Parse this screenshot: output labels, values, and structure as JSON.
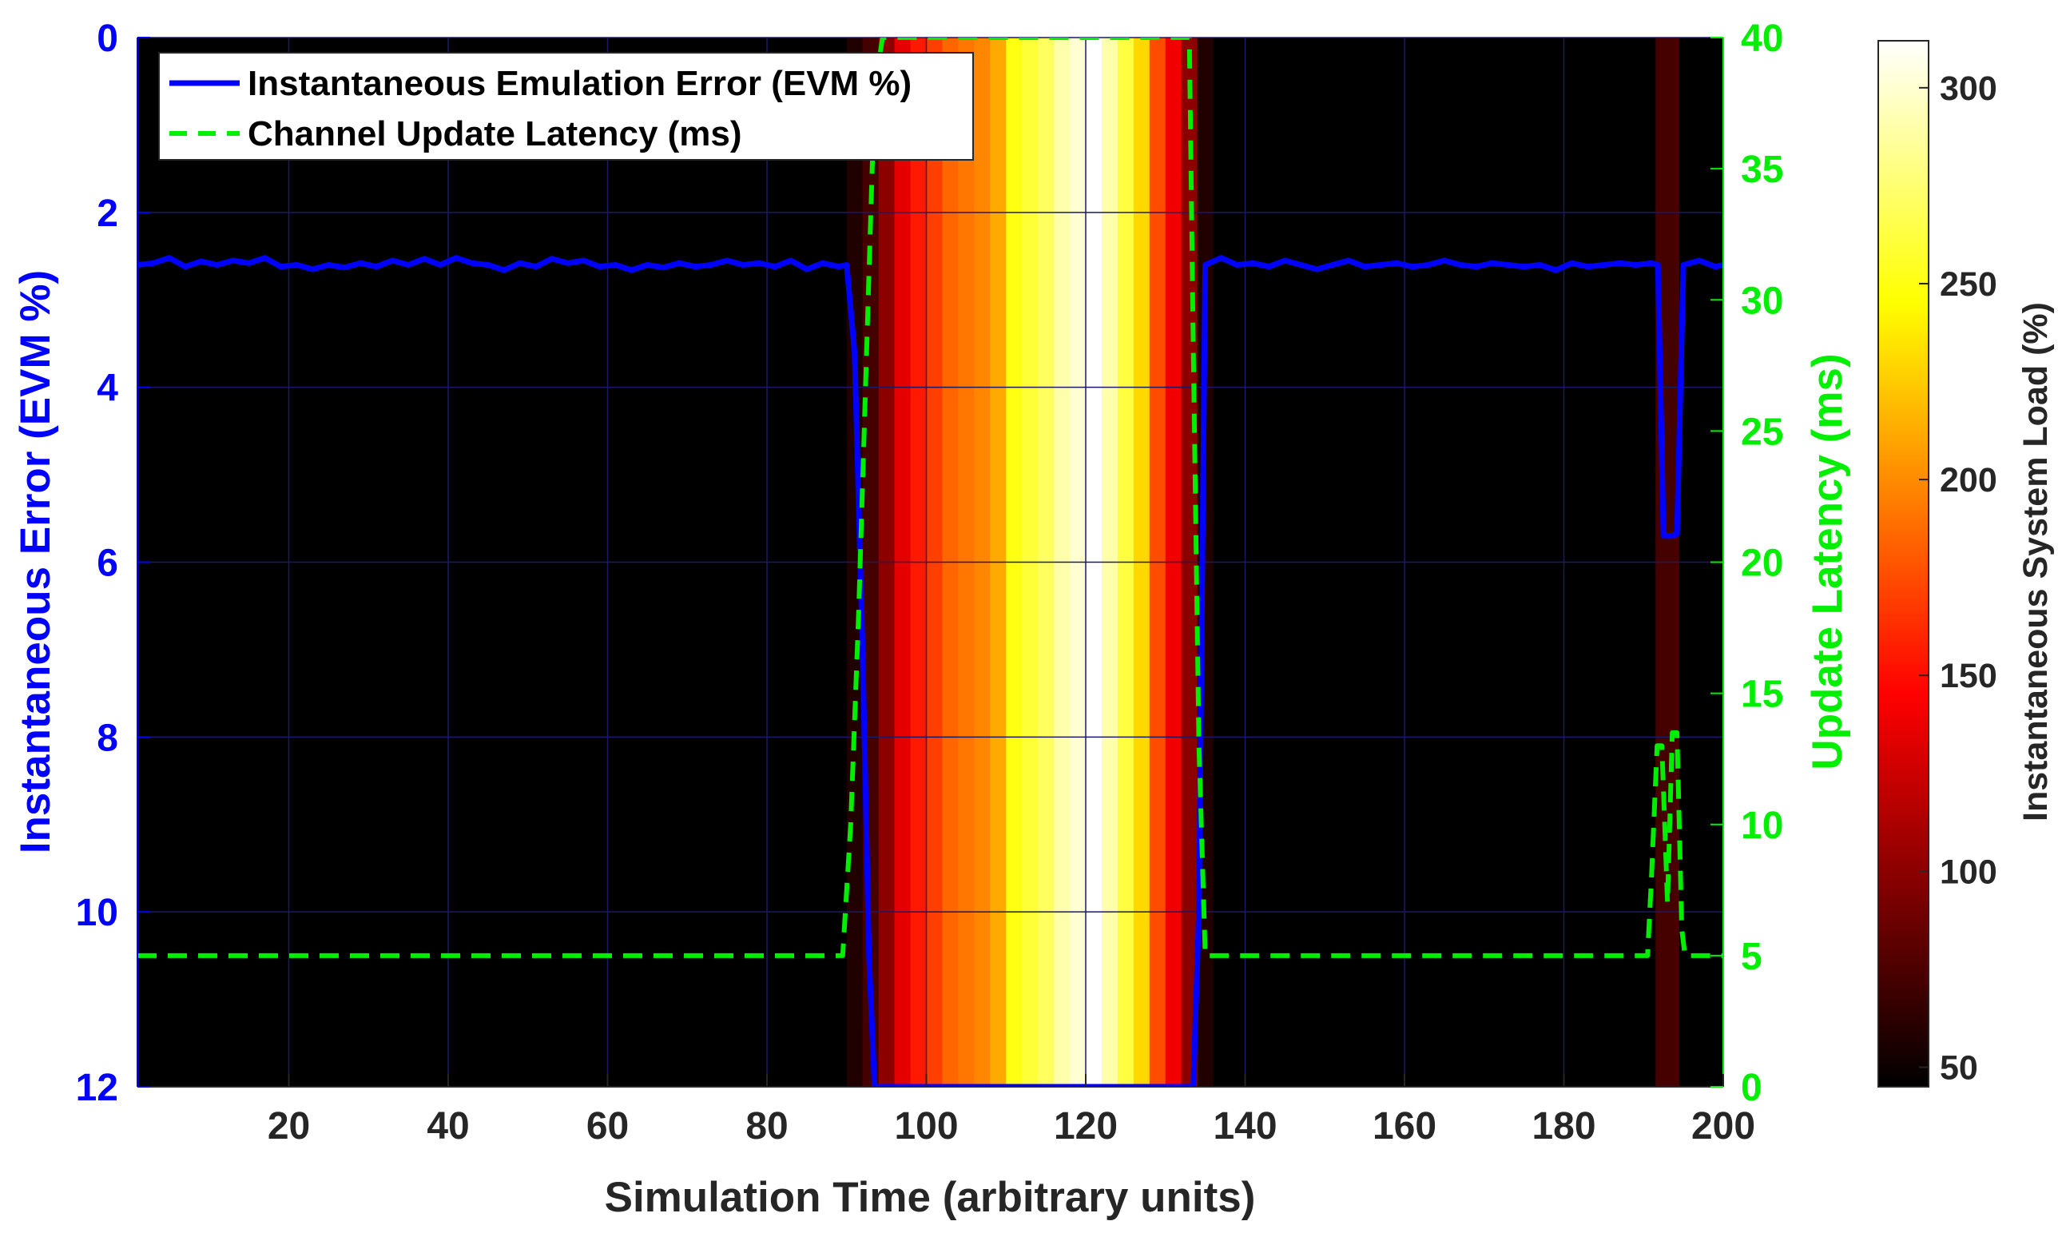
{
  "chart_data": {
    "type": "line",
    "xlabel": "Simulation Time (arbitrary units)",
    "ylabel_left": "Instantaneous Error (EVM %)",
    "ylabel_right": "Update Latency (ms)",
    "colorbar_label": "Instantaneous System Load (%)",
    "xlim": [
      1,
      200
    ],
    "ylim_left": [
      0,
      12
    ],
    "ylim_left_reversed": true,
    "ylim_right": [
      0,
      40
    ],
    "colorbar_lim": [
      45,
      312
    ],
    "x_ticks": [
      "20",
      "40",
      "60",
      "80",
      "100",
      "120",
      "140",
      "160",
      "180",
      "200"
    ],
    "y_left_ticks": [
      "0",
      "2",
      "4",
      "6",
      "8",
      "10",
      "12"
    ],
    "y_right_ticks": [
      "0",
      "5",
      "10",
      "15",
      "20",
      "25",
      "30",
      "35",
      "40"
    ],
    "colorbar_ticks": [
      "50",
      "100",
      "150",
      "200",
      "250",
      "300"
    ],
    "colormap": "hot",
    "grid": true,
    "legend_position": "top-left",
    "colors": {
      "background": "#000000",
      "error_line": "#0000ff",
      "latency_line": "#00ee00",
      "grid": "#1a1a66"
    },
    "series": [
      {
        "name": "Instantaneous Emulation Error (EVM %)",
        "axis": "left",
        "style": "solid",
        "x": [
          1,
          3,
          5,
          7,
          9,
          11,
          13,
          15,
          17,
          19,
          21,
          23,
          25,
          27,
          29,
          31,
          33,
          35,
          37,
          39,
          41,
          43,
          45,
          47,
          49,
          51,
          53,
          55,
          57,
          59,
          61,
          63,
          65,
          67,
          69,
          71,
          73,
          75,
          77,
          79,
          81,
          83,
          85,
          87,
          89,
          90,
          91,
          92,
          92.8,
          93.5,
          133.5,
          134.2,
          135,
          137,
          139,
          141,
          143,
          145,
          147,
          149,
          151,
          153,
          155,
          157,
          159,
          161,
          163,
          165,
          167,
          169,
          171,
          173,
          175,
          177,
          179,
          181,
          183,
          185,
          187,
          189,
          191,
          191.8,
          192.5,
          193.5,
          194.2,
          195,
          197,
          199,
          200
        ],
        "y": [
          2.6,
          2.58,
          2.52,
          2.62,
          2.56,
          2.6,
          2.55,
          2.58,
          2.52,
          2.62,
          2.6,
          2.65,
          2.6,
          2.63,
          2.58,
          2.62,
          2.55,
          2.6,
          2.53,
          2.6,
          2.52,
          2.58,
          2.6,
          2.66,
          2.58,
          2.62,
          2.53,
          2.58,
          2.55,
          2.62,
          2.6,
          2.66,
          2.6,
          2.63,
          2.58,
          2.62,
          2.6,
          2.55,
          2.6,
          2.58,
          2.62,
          2.55,
          2.65,
          2.58,
          2.62,
          2.6,
          3.6,
          7.0,
          10.5,
          12.0,
          12.0,
          10.0,
          2.6,
          2.52,
          2.6,
          2.58,
          2.62,
          2.55,
          2.6,
          2.65,
          2.6,
          2.55,
          2.62,
          2.6,
          2.58,
          2.62,
          2.6,
          2.55,
          2.6,
          2.62,
          2.58,
          2.6,
          2.62,
          2.6,
          2.66,
          2.58,
          2.62,
          2.6,
          2.58,
          2.6,
          2.58,
          2.6,
          5.7,
          5.7,
          5.68,
          2.6,
          2.55,
          2.62,
          2.6
        ]
      },
      {
        "name": "Channel Update Latency (ms)",
        "axis": "right",
        "style": "dashed",
        "x": [
          1,
          89.5,
          90.5,
          91.5,
          92.5,
          93.5,
          94.5,
          133,
          133.5,
          134.2,
          135,
          190.5,
          191,
          191.7,
          192.3,
          193,
          193.6,
          194.2,
          194.8,
          195.2,
          200
        ],
        "y": [
          5,
          5,
          10,
          18,
          28,
          38,
          40,
          40,
          28,
          13,
          5,
          5,
          8,
          13,
          13,
          7,
          13.5,
          13.5,
          6,
          5,
          5
        ]
      }
    ],
    "load_background": {
      "note": "colormap background shown across the plot area; values in system load %",
      "x": [
        1,
        88,
        90,
        92,
        94,
        96,
        98,
        100,
        102,
        104,
        106,
        108,
        110,
        112,
        114,
        116,
        118,
        120,
        122,
        124,
        126,
        128,
        130,
        132,
        134,
        136,
        190.5,
        191.5,
        192.5,
        193.5,
        194.5,
        200
      ],
      "values": [
        45,
        45,
        58,
        72,
        100,
        135,
        155,
        170,
        185,
        192,
        198,
        212,
        250,
        260,
        270,
        290,
        300,
        312,
        290,
        262,
        230,
        175,
        140,
        100,
        58,
        45,
        45,
        72,
        72,
        72,
        45,
        45
      ]
    }
  }
}
